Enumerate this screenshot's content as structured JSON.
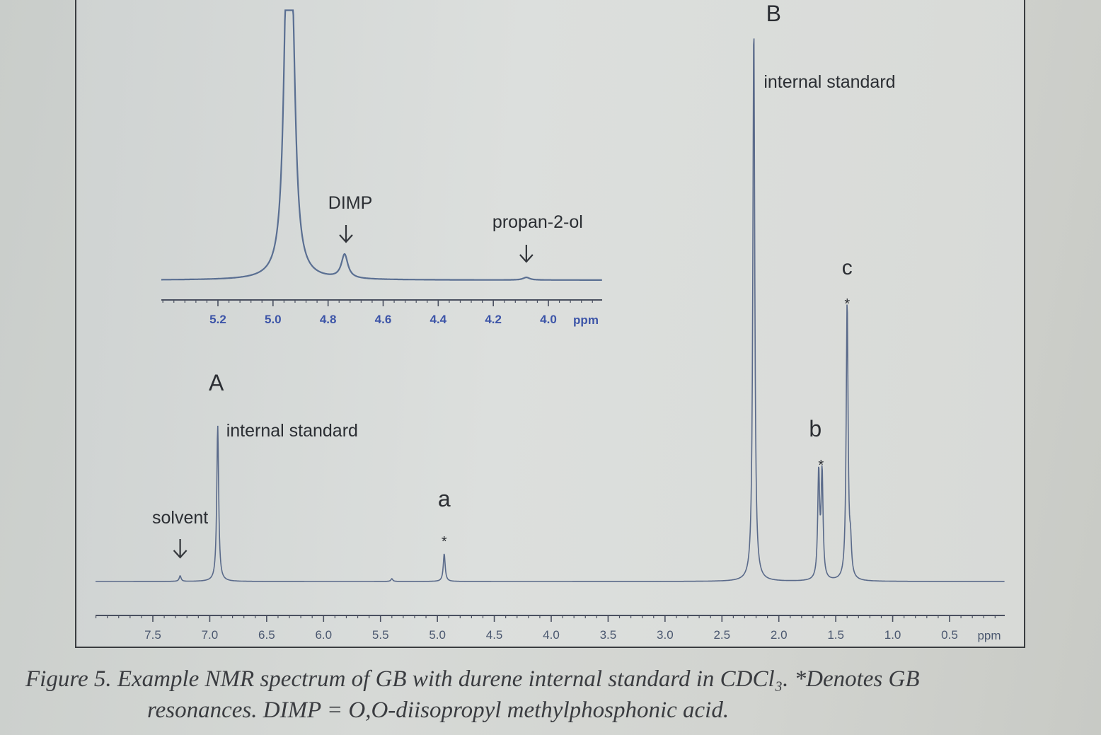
{
  "chart_data": [
    {
      "type": "line",
      "panel": "main",
      "xlabel": "ppm",
      "x_reversed": true,
      "xlim": [
        7.9,
        0.0
      ],
      "x_ticks": [
        "7.5",
        "7.0",
        "6.5",
        "6.0",
        "5.5",
        "5.0",
        "4.5",
        "4.0",
        "3.5",
        "3.0",
        "2.5",
        "2.0",
        "1.5",
        "1.0",
        "0.5"
      ],
      "peaks": [
        {
          "ppm": 7.26,
          "relative_height": 0.01
        },
        {
          "ppm": 6.93,
          "relative_height": 0.28
        },
        {
          "ppm": 5.4,
          "relative_height": 0.005
        },
        {
          "ppm": 4.94,
          "relative_height": 0.05
        },
        {
          "ppm": 2.22,
          "relative_height": 1.0
        },
        {
          "ppm": 1.65,
          "relative_height": 0.19
        },
        {
          "ppm": 1.62,
          "relative_height": 0.19
        },
        {
          "ppm": 1.4,
          "relative_height": 0.5
        },
        {
          "ppm": 1.37,
          "relative_height": 0.05
        }
      ],
      "annotations": [
        {
          "label": "A",
          "text": "internal standard",
          "ppm": 6.93
        },
        {
          "label": "",
          "text": "solvent",
          "ppm": 7.26
        },
        {
          "label": "a",
          "text": "",
          "ppm": 4.94
        },
        {
          "label": "B",
          "text": "internal standard",
          "ppm": 2.22
        },
        {
          "label": "b",
          "text": "",
          "ppm": 1.63
        },
        {
          "label": "c",
          "text": "",
          "ppm": 1.4
        }
      ]
    },
    {
      "type": "line",
      "panel": "inset",
      "xlabel": "ppm",
      "x_reversed": true,
      "xlim": [
        5.43,
        3.88
      ],
      "x_ticks": [
        "5.2",
        "5.0",
        "4.8",
        "4.6",
        "4.4",
        "4.2",
        "4.0"
      ],
      "peaks": [
        {
          "ppm": 4.95,
          "relative_height": 1.0
        },
        {
          "ppm": 4.93,
          "relative_height": 0.8
        },
        {
          "ppm": 4.74,
          "relative_height": 0.09
        },
        {
          "ppm": 4.08,
          "relative_height": 0.01
        }
      ],
      "annotations": [
        {
          "text": "DIMP",
          "ppm": 4.74
        },
        {
          "text": "propan-2-ol",
          "ppm": 4.08
        }
      ]
    }
  ],
  "marker": "*",
  "caption": {
    "line1": "Figure 5. Example NMR spectrum of GB with durene internal standard in CDCl₃. *Denotes GB",
    "line2": "resonances. DIMP = O,O-diisopropyl methylphosphonic acid."
  }
}
